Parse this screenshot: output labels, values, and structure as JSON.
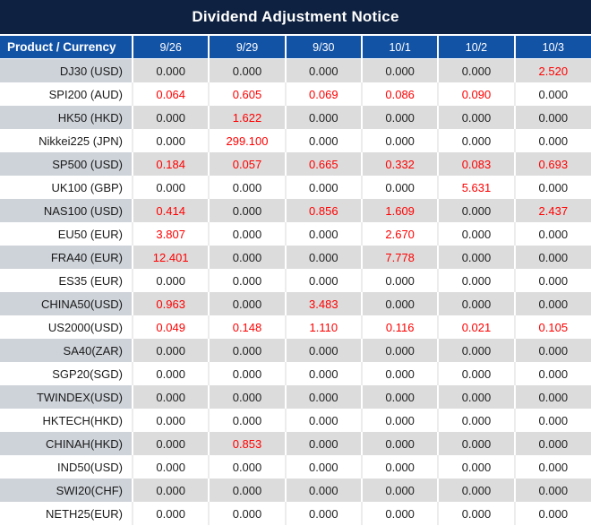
{
  "title": "Dividend Adjustment Notice",
  "colors": {
    "title_bg": "#0e2140",
    "header_bg": "#1353a6",
    "row_gray_product_bg": "#ced3d9",
    "row_gray_value_bg": "#dcdcdc",
    "value_text": "#1f1f1f",
    "value_highlight_red": "#ff0000"
  },
  "chart_data": {
    "type": "table",
    "title": "Dividend Adjustment Notice",
    "columns": [
      "Product / Currency",
      "9/26",
      "9/29",
      "9/30",
      "10/1",
      "10/2",
      "10/3"
    ],
    "highlight_rule": "non-zero values rendered in red",
    "rows": [
      {
        "product": "DJ30 (USD)",
        "values": [
          "0.000",
          "0.000",
          "0.000",
          "0.000",
          "0.000",
          "2.520"
        ]
      },
      {
        "product": "SPI200 (AUD)",
        "values": [
          "0.064",
          "0.605",
          "0.069",
          "0.086",
          "0.090",
          "0.000"
        ]
      },
      {
        "product": "HK50 (HKD)",
        "values": [
          "0.000",
          "1.622",
          "0.000",
          "0.000",
          "0.000",
          "0.000"
        ]
      },
      {
        "product": "Nikkei225 (JPN)",
        "values": [
          "0.000",
          "299.100",
          "0.000",
          "0.000",
          "0.000",
          "0.000"
        ]
      },
      {
        "product": "SP500 (USD)",
        "values": [
          "0.184",
          "0.057",
          "0.665",
          "0.332",
          "0.083",
          "0.693"
        ]
      },
      {
        "product": "UK100 (GBP)",
        "values": [
          "0.000",
          "0.000",
          "0.000",
          "0.000",
          "5.631",
          "0.000"
        ]
      },
      {
        "product": "NAS100 (USD)",
        "values": [
          "0.414",
          "0.000",
          "0.856",
          "1.609",
          "0.000",
          "2.437"
        ]
      },
      {
        "product": "EU50 (EUR)",
        "values": [
          "3.807",
          "0.000",
          "0.000",
          "2.670",
          "0.000",
          "0.000"
        ]
      },
      {
        "product": "FRA40 (EUR)",
        "values": [
          "12.401",
          "0.000",
          "0.000",
          "7.778",
          "0.000",
          "0.000"
        ]
      },
      {
        "product": "ES35 (EUR)",
        "values": [
          "0.000",
          "0.000",
          "0.000",
          "0.000",
          "0.000",
          "0.000"
        ]
      },
      {
        "product": "CHINA50(USD)",
        "values": [
          "0.963",
          "0.000",
          "3.483",
          "0.000",
          "0.000",
          "0.000"
        ]
      },
      {
        "product": "US2000(USD)",
        "values": [
          "0.049",
          "0.148",
          "1.110",
          "0.116",
          "0.021",
          "0.105"
        ]
      },
      {
        "product": "SA40(ZAR)",
        "values": [
          "0.000",
          "0.000",
          "0.000",
          "0.000",
          "0.000",
          "0.000"
        ]
      },
      {
        "product": "SGP20(SGD)",
        "values": [
          "0.000",
          "0.000",
          "0.000",
          "0.000",
          "0.000",
          "0.000"
        ]
      },
      {
        "product": "TWINDEX(USD)",
        "values": [
          "0.000",
          "0.000",
          "0.000",
          "0.000",
          "0.000",
          "0.000"
        ]
      },
      {
        "product": "HKTECH(HKD)",
        "values": [
          "0.000",
          "0.000",
          "0.000",
          "0.000",
          "0.000",
          "0.000"
        ]
      },
      {
        "product": "CHINAH(HKD)",
        "values": [
          "0.000",
          "0.853",
          "0.000",
          "0.000",
          "0.000",
          "0.000"
        ]
      },
      {
        "product": "IND50(USD)",
        "values": [
          "0.000",
          "0.000",
          "0.000",
          "0.000",
          "0.000",
          "0.000"
        ]
      },
      {
        "product": "SWI20(CHF)",
        "values": [
          "0.000",
          "0.000",
          "0.000",
          "0.000",
          "0.000",
          "0.000"
        ]
      },
      {
        "product": "NETH25(EUR)",
        "values": [
          "0.000",
          "0.000",
          "0.000",
          "0.000",
          "0.000",
          "0.000"
        ]
      }
    ]
  }
}
